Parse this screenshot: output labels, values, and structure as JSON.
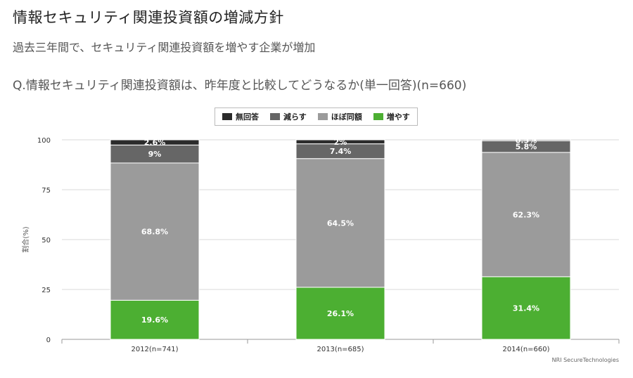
{
  "header": {
    "title": "情報セキュリティ関連投資額の増減方針",
    "subtitle": "過去三年間で、セキュリティ関連投資額を増やす企業が増加",
    "question": "Q.情報セキュリティ関連投資額は、昨年度と比較してどうなるか(単一回答)(n=660)"
  },
  "source": "NRI SecureTechnologies",
  "chart_data": {
    "type": "bar",
    "stacked": true,
    "categories": [
      "2012(n=741)",
      "2013(n=685)",
      "2014(n=660)"
    ],
    "ylabel": "割合(%)",
    "ylim": [
      0,
      100
    ],
    "yticks": [
      0,
      25,
      50,
      75,
      100
    ],
    "grid": true,
    "legend_position": "top-center",
    "series": [
      {
        "name": "増やす",
        "color": "#4caf32",
        "values": [
          19.6,
          26.1,
          31.4
        ],
        "labels": [
          "19.6%",
          "26.1%",
          "31.4%"
        ]
      },
      {
        "name": "ほぼ同額",
        "color": "#9b9b9b",
        "values": [
          68.8,
          64.5,
          62.3
        ],
        "labels": [
          "68.8%",
          "64.5%",
          "62.3%"
        ]
      },
      {
        "name": "減らす",
        "color": "#666666",
        "values": [
          9,
          7.4,
          5.8
        ],
        "labels": [
          "9%",
          "7.4%",
          "5.8%"
        ]
      },
      {
        "name": "無回答",
        "color": "#2b2b2b",
        "values": [
          2.6,
          2,
          0.5
        ],
        "labels": [
          "2.6%",
          "2%",
          "0.5%"
        ]
      }
    ]
  }
}
